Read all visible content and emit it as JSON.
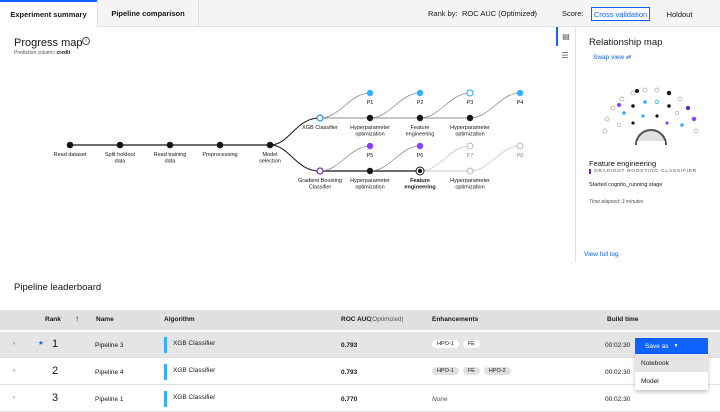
{
  "tabs": [
    {
      "label": "Experiment summary",
      "active": true
    },
    {
      "label": "Pipeline comparison",
      "active": false
    }
  ],
  "rank_by": {
    "label": "Rank by:",
    "value": "ROC AUC (Optimized)"
  },
  "score": {
    "label": "Score:",
    "options": [
      "Cross validation",
      "Holdout"
    ],
    "selected": "Cross validation"
  },
  "progress_map": {
    "title": "Progress map",
    "prediction_label": "Prediction column:",
    "prediction_value": "credit",
    "steps": [
      "Read dataset",
      "Split holdout data",
      "Read training data",
      "Preprocessing",
      "Model selection"
    ],
    "branches": [
      {
        "algorithm": "XGB Classifier",
        "stages": [
          "Hyperparameter optimization",
          "Feature engineering",
          "Hyperparameter optimization"
        ],
        "pipelines": [
          "P1",
          "P2",
          "P3",
          "P4"
        ]
      },
      {
        "algorithm": "Gradient Boosting Classifier",
        "stages": [
          "Hyperparameter optimization",
          "Feature engineering",
          "Hyperparameter optimization"
        ],
        "pipelines": [
          "P5",
          "P6",
          "P7",
          "P8"
        ],
        "active_stage": "Feature engineering"
      }
    ]
  },
  "relationship_map": {
    "title": "Relationship map",
    "swap_label": "Swap view",
    "current_stage": "Feature engineering",
    "current_algorithm": "GRADIENT BOOSTING CLASSIFIER",
    "status": "Started cognito_running stage",
    "elapsed": "Time elapsed: 3 minutes",
    "view_log": "View full log"
  },
  "leaderboard": {
    "title": "Pipeline leaderboard",
    "columns": {
      "rank": "Rank",
      "name": "Name",
      "algorithm": "Algorithm",
      "metric": "ROC AUC",
      "metric_note": "(Optimized)",
      "enhancements": "Enhancements",
      "build_time": "Build time"
    },
    "rows": [
      {
        "rank": "1",
        "name": "Pipeline 3",
        "algorithm": "XGB Classifier",
        "roc": "0.793",
        "enhancements": [
          "HPO-1",
          "FE"
        ],
        "time": "00:02:30",
        "starred": true
      },
      {
        "rank": "2",
        "name": "Pipeline 4",
        "algorithm": "XGB Classifier",
        "roc": "0.793",
        "enhancements": [
          "HPO-1",
          "FE",
          "HPO-2"
        ],
        "time": "00:02:30"
      },
      {
        "rank": "3",
        "name": "Pipeline 1",
        "algorithm": "XGB Classifier",
        "roc": "0.770",
        "enhancements": [],
        "none_label": "None",
        "time": "00:02:30"
      }
    ],
    "save_as": {
      "label": "Save as",
      "options": [
        "Notebook",
        "Model"
      ]
    }
  }
}
